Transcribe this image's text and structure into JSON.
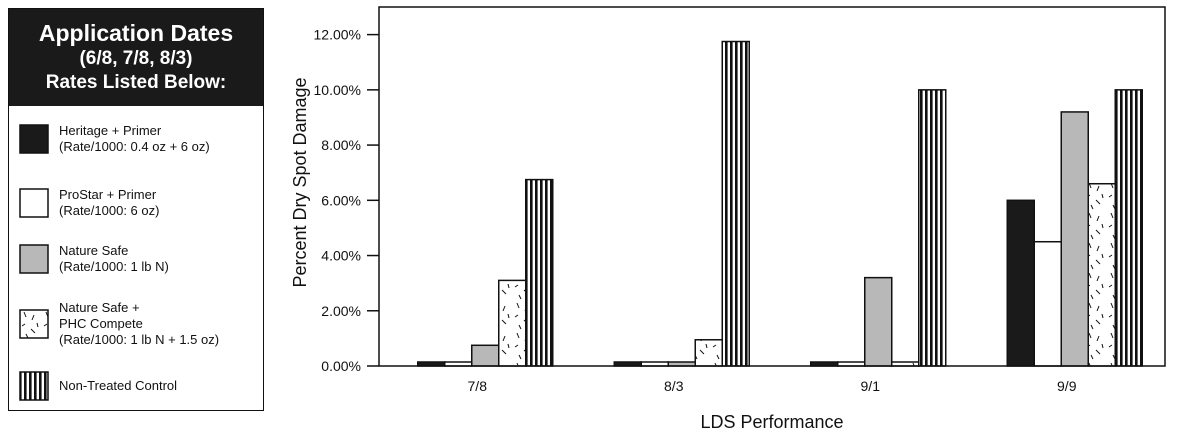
{
  "legend": {
    "header": {
      "line1": "Application Dates",
      "line2": "(6/8, 7/8, 8/3)",
      "line3": "Rates Listed Below:"
    },
    "items": [
      {
        "pattern": "solid-black",
        "lines": [
          "Heritage + Primer",
          "(Rate/1000:  0.4 oz + 6 oz)"
        ]
      },
      {
        "pattern": "white",
        "lines": [
          "ProStar + Primer",
          "(Rate/1000:  6 oz)"
        ]
      },
      {
        "pattern": "gray",
        "lines": [
          "Nature Safe",
          "(Rate/1000:  1 lb N)"
        ]
      },
      {
        "pattern": "dashed-speckle",
        "lines": [
          "Nature Safe +",
          "PHC Compete",
          "(Rate/1000:  1 lb N + 1.5 oz)"
        ]
      },
      {
        "pattern": "vertical-stripes",
        "lines": [
          "Non-Treated Control"
        ]
      }
    ]
  },
  "colors": {
    "black": "#1a1a1a",
    "gray": "#b8b8b8",
    "white": "#ffffff",
    "outline": "#111111"
  },
  "chart_data": {
    "type": "bar",
    "title": "",
    "xlabel": "LDS Performance",
    "ylabel": "Percent Dry Spot Damage",
    "ylim": [
      0,
      0.13
    ],
    "yticks": [
      "0.00%",
      "2.00%",
      "4.00%",
      "6.00%",
      "8.00%",
      "10.00%",
      "12.00%"
    ],
    "ytick_values": [
      0,
      0.02,
      0.04,
      0.06,
      0.08,
      0.1,
      0.12
    ],
    "grid": false,
    "categories": [
      "7/8",
      "8/3",
      "9/1",
      "9/9"
    ],
    "series": [
      {
        "name": "Heritage + Primer",
        "pattern": "solid-black",
        "values": [
          0.0,
          0.0,
          0.0,
          0.06
        ]
      },
      {
        "name": "ProStar + Primer",
        "pattern": "white",
        "values": [
          0.0,
          0.0,
          0.0,
          0.045
        ]
      },
      {
        "name": "Nature Safe",
        "pattern": "gray",
        "values": [
          0.0075,
          0.0,
          0.032,
          0.092
        ]
      },
      {
        "name": "Nature Safe + PHC Compete",
        "pattern": "dashed-speckle",
        "values": [
          0.031,
          0.0095,
          0.0,
          0.066
        ]
      },
      {
        "name": "Non-Treated Control",
        "pattern": "vertical-stripes",
        "values": [
          0.0675,
          0.1175,
          0.1,
          0.1
        ]
      }
    ]
  }
}
